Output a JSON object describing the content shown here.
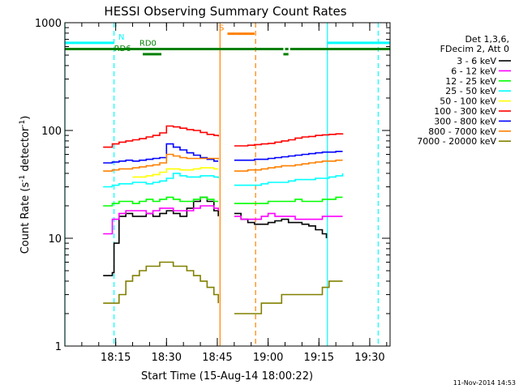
{
  "chart_data": {
    "type": "line",
    "title": "HESSI Observing Summary Count Rates",
    "xlabel": "Start Time (15-Aug-14 18:00:22)",
    "ylabel": "Count Rate (s⁻¹ detector⁻¹)",
    "ylabel_base": "Count Rate (s",
    "ylabel_exp1": "-1",
    "ylabel_mid": " detector",
    "ylabel_exp2": "-1",
    "ylabel_end": ")",
    "y_scale": "log",
    "ylim": [
      1,
      1000
    ],
    "xlim_minutes": [
      0,
      96
    ],
    "x_ticks": [
      {
        "label": "18:15",
        "minutes": 15
      },
      {
        "label": "18:30",
        "minutes": 30
      },
      {
        "label": "18:45",
        "minutes": 45
      },
      {
        "label": "19:00",
        "minutes": 60
      },
      {
        "label": "19:15",
        "minutes": 75
      },
      {
        "label": "19:30",
        "minutes": 90
      }
    ],
    "y_ticks": [
      {
        "label": "1",
        "value": 1
      },
      {
        "label": "10",
        "value": 10
      },
      {
        "label": "100",
        "value": 100
      },
      {
        "label": "1000",
        "value": 1000
      }
    ],
    "timestamp": "11-Nov-2014 14:53",
    "legend": {
      "header": [
        "Det 1,3,6,",
        "FDecim 2, Att 0"
      ],
      "placement": "right"
    },
    "series": [
      {
        "name": "3 - 6 keV",
        "color": "#000000",
        "segments": [
          {
            "x": [
              11.3,
              14,
              14.5,
              16,
              18,
              20,
              22,
              24,
              26,
              28,
              30,
              32,
              34,
              36,
              38,
              40,
              42,
              44,
              45.3
            ],
            "y": [
              4.5,
              4.8,
              9,
              16,
              17,
              16,
              16,
              17,
              16,
              17,
              18,
              17,
              16,
              19,
              22,
              24,
              22,
              18,
              16
            ]
          },
          {
            "x": [
              50,
              52,
              54,
              56,
              58,
              60,
              62,
              64,
              66,
              68,
              70,
              72,
              74,
              76,
              77.2
            ],
            "y": [
              17,
              15,
              14,
              13.5,
              13.5,
              14,
              14.5,
              15,
              14,
              14,
              13.5,
              13,
              12,
              11,
              10
            ]
          }
        ]
      },
      {
        "name": "6 - 12 keV",
        "color": "#ff00ff",
        "segments": [
          {
            "x": [
              11.3,
              14,
              16,
              18,
              20,
              22,
              24,
              26,
              28,
              30,
              32,
              34,
              36,
              38,
              40,
              42,
              44,
              45.3
            ],
            "y": [
              11,
              15,
              17,
              18,
              18,
              18,
              17,
              18,
              19,
              19,
              18,
              18,
              18,
              19,
              20,
              20,
              19,
              18
            ]
          },
          {
            "x": [
              50,
              52,
              54,
              56,
              58,
              60,
              62,
              64,
              66,
              68,
              70,
              72,
              74,
              76,
              78,
              80,
              82
            ],
            "y": [
              16,
              15,
              15,
              15,
              16,
              17,
              16,
              16,
              16,
              15,
              15,
              15,
              15,
              16,
              16,
              16,
              16
            ]
          }
        ]
      },
      {
        "name": "12 - 25 keV",
        "color": "#00ff00",
        "segments": [
          {
            "x": [
              11.3,
              14,
              16,
              18,
              20,
              22,
              24,
              26,
              28,
              30,
              32,
              34,
              36,
              38,
              40,
              42,
              44,
              45.3
            ],
            "y": [
              20,
              21,
              22,
              22,
              21,
              22,
              23,
              22,
              23,
              24,
              23,
              22,
              22,
              23,
              24,
              23,
              22,
              22
            ]
          },
          {
            "x": [
              50,
              52,
              54,
              56,
              58,
              60,
              62,
              64,
              66,
              68,
              70,
              72,
              74,
              76,
              78,
              80,
              82
            ],
            "y": [
              21,
              21,
              21,
              21,
              21,
              22,
              22,
              22,
              22,
              23,
              22,
              22,
              22,
              23,
              23,
              24,
              24
            ]
          }
        ]
      },
      {
        "name": "25 - 50 keV",
        "color": "#00ffff",
        "segments": [
          {
            "x": [
              11.3,
              14,
              16,
              18,
              20,
              22,
              24,
              26,
              28,
              30,
              32,
              34,
              36,
              38,
              40,
              42,
              44,
              45.3
            ],
            "y": [
              30,
              31,
              32,
              32,
              33,
              33,
              32,
              33,
              34,
              36,
              40,
              38,
              37,
              37,
              38,
              38,
              37,
              36
            ]
          },
          {
            "x": [
              50,
              52,
              54,
              56,
              58,
              60,
              62,
              64,
              66,
              68,
              70,
              72,
              74,
              76,
              78,
              80,
              82
            ],
            "y": [
              31,
              31,
              31,
              31,
              32,
              33,
              33,
              33,
              34,
              35,
              35,
              35,
              36,
              36,
              37,
              38,
              40
            ]
          }
        ]
      },
      {
        "name": "50 - 100 keV",
        "color": "#ffff00",
        "segments": [
          {
            "x": [
              20,
              22,
              24,
              26,
              28,
              30,
              32,
              34,
              36,
              38,
              40,
              42,
              44,
              45.3
            ],
            "y": [
              37,
              37,
              38,
              39,
              41,
              44,
              44,
              43,
              43,
              44,
              45,
              45,
              44,
              44
            ]
          }
        ]
      },
      {
        "name": "100 - 300 keV",
        "color": "#ff0000",
        "segments": [
          {
            "x": [
              11.3,
              14,
              16,
              18,
              20,
              22,
              24,
              26,
              28,
              30,
              32,
              34,
              36,
              38,
              40,
              42,
              44,
              45.3
            ],
            "y": [
              70,
              75,
              78,
              80,
              82,
              84,
              87,
              90,
              95,
              110,
              108,
              105,
              102,
              100,
              96,
              92,
              90,
              88
            ]
          },
          {
            "x": [
              50,
              52,
              54,
              56,
              58,
              60,
              62,
              64,
              66,
              68,
              70,
              72,
              74,
              76,
              78,
              80,
              82
            ],
            "y": [
              72,
              72,
              73,
              74,
              75,
              76,
              78,
              80,
              82,
              85,
              87,
              88,
              90,
              91,
              92,
              93,
              94
            ]
          }
        ]
      },
      {
        "name": "300 - 800 keV",
        "color": "#0000ff",
        "segments": [
          {
            "x": [
              11.3,
              14,
              16,
              18,
              20,
              22,
              24,
              26,
              28,
              30,
              32,
              34,
              36,
              38,
              40,
              42,
              44,
              45.3
            ],
            "y": [
              50,
              51,
              52,
              53,
              52,
              53,
              54,
              55,
              56,
              75,
              70,
              66,
              62,
              59,
              56,
              54,
              52,
              52
            ]
          },
          {
            "x": [
              50,
              52,
              54,
              56,
              58,
              60,
              62,
              64,
              66,
              68,
              70,
              72,
              74,
              76,
              78,
              80,
              82
            ],
            "y": [
              53,
              53,
              53,
              54,
              54,
              55,
              56,
              57,
              58,
              59,
              60,
              61,
              62,
              63,
              63,
              64,
              64
            ]
          }
        ]
      },
      {
        "name": "800 - 7000 keV",
        "color": "#ff8000",
        "segments": [
          {
            "x": [
              11.3,
              14,
              16,
              18,
              20,
              22,
              24,
              26,
              28,
              30,
              32,
              34,
              36,
              38,
              40,
              42,
              44,
              45.3
            ],
            "y": [
              42,
              43,
              44,
              44,
              45,
              46,
              47,
              48,
              50,
              60,
              58,
              56,
              55,
              55,
              55,
              55,
              55,
              54
            ]
          },
          {
            "x": [
              50,
              52,
              54,
              56,
              58,
              60,
              62,
              64,
              66,
              68,
              70,
              72,
              74,
              76,
              78,
              80,
              82
            ],
            "y": [
              42,
              42,
              43,
              43,
              44,
              45,
              46,
              47,
              47,
              48,
              49,
              50,
              51,
              52,
              52,
              53,
              53
            ]
          }
        ]
      },
      {
        "name": "7000 - 20000 keV",
        "color": "#808000",
        "segments": [
          {
            "x": [
              11.3,
              14,
              16,
              18,
              20,
              22,
              24,
              26,
              28,
              30,
              32,
              34,
              36,
              38,
              40,
              42,
              44,
              45.3
            ],
            "y": [
              2.5,
              2.5,
              3,
              4,
              4.5,
              5,
              5.5,
              5.5,
              6,
              6,
              5.5,
              5.5,
              5,
              4.5,
              4,
              3.5,
              3,
              2.5
            ]
          },
          {
            "x": [
              50,
              52,
              54,
              56,
              58,
              60,
              62,
              64,
              66,
              68,
              70,
              72,
              74,
              76,
              78,
              80,
              82
            ],
            "y": [
              2,
              2,
              2,
              2,
              2.5,
              2.5,
              2.5,
              3,
              3,
              3,
              3,
              3,
              3,
              3.5,
              4,
              4,
              4
            ]
          }
        ]
      }
    ],
    "flags": [
      {
        "name": "N",
        "color": "#00ffff",
        "level": 650,
        "segments": [
          [
            0,
            14.5
          ],
          [
            77.5,
            96
          ]
        ],
        "label": "N",
        "label_at": 15.8
      },
      {
        "name": "S",
        "color": "#ff8000",
        "level": 790,
        "segments": [
          [
            48,
            56
          ]
        ],
        "label": "S",
        "label_at": 45.5
      },
      {
        "name": "RD0",
        "color": "#008000",
        "level": 570,
        "segments": [
          [
            0,
            64.5
          ],
          [
            65,
            66
          ],
          [
            66.5,
            96
          ]
        ],
        "label": "RD0",
        "label_at": 22
      },
      {
        "name": "RD6",
        "color": "#008000",
        "level": 510,
        "segments": [
          [
            23,
            28.5
          ],
          [
            64.5,
            66
          ]
        ],
        "label": "RD6",
        "label_at": 14.5
      }
    ],
    "vlines": [
      {
        "x": 0,
        "color": "#00ffff",
        "dash": false
      },
      {
        "x": 14.5,
        "color": "#00ffff",
        "dash": true
      },
      {
        "x": 45.8,
        "color": "#ff8000",
        "dash": false
      },
      {
        "x": 56.3,
        "color": "#ff8000",
        "dash": true
      },
      {
        "x": 77.5,
        "color": "#00ffff",
        "dash": false
      },
      {
        "x": 92.5,
        "color": "#00ffff",
        "dash": true
      }
    ]
  }
}
